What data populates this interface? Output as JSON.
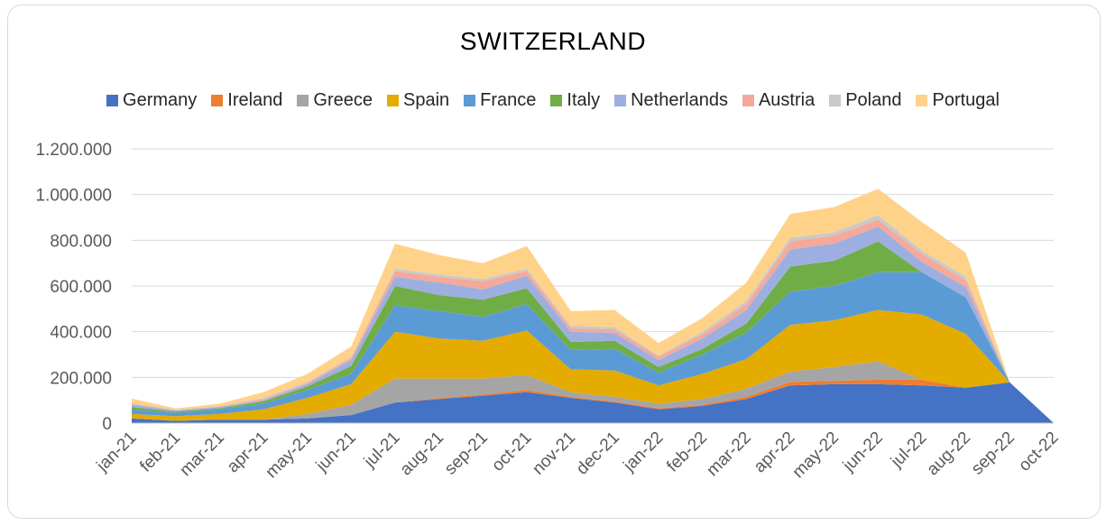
{
  "chart_data": {
    "type": "area",
    "stacked": true,
    "title": "SWITZERLAND",
    "xlabel": "",
    "ylabel": "",
    "ylim": [
      0,
      1200000
    ],
    "yticks": [
      {
        "value": 0,
        "label": "0"
      },
      {
        "value": 200000,
        "label": "200.000"
      },
      {
        "value": 400000,
        "label": "400.000"
      },
      {
        "value": 600000,
        "label": "600.000"
      },
      {
        "value": 800000,
        "label": "800.000"
      },
      {
        "value": 1000000,
        "label": "1.000.000"
      },
      {
        "value": 1200000,
        "label": "1.200.000"
      }
    ],
    "grid": true,
    "legend_position": "top",
    "categories": [
      "jan-21",
      "feb-21",
      "mar-21",
      "apr-21",
      "may-21",
      "jun-21",
      "jul-21",
      "aug-21",
      "sep-21",
      "oct-21",
      "nov-21",
      "dec-21",
      "jan-22",
      "feb-22",
      "mar-22",
      "apr-22",
      "may-22",
      "jun-22",
      "jul-22",
      "aug-22",
      "sep-22",
      "oct-22"
    ],
    "series": [
      {
        "name": "Germany",
        "color": "#4472c4",
        "values": [
          20000,
          10000,
          15000,
          15000,
          20000,
          35000,
          90000,
          105000,
          120000,
          135000,
          110000,
          90000,
          60000,
          75000,
          105000,
          165000,
          170000,
          170000,
          165000,
          155000,
          178000,
          0
        ]
      },
      {
        "name": "Ireland",
        "color": "#ed7d31",
        "values": [
          0,
          0,
          0,
          0,
          0,
          0,
          0,
          5000,
          5000,
          10000,
          5000,
          5000,
          5000,
          5000,
          10000,
          15000,
          15000,
          20000,
          25000,
          0,
          0,
          0
        ]
      },
      {
        "name": "Greece",
        "color": "#a5a5a5",
        "values": [
          0,
          0,
          0,
          0,
          20000,
          45000,
          105000,
          85000,
          70000,
          65000,
          20000,
          20000,
          20000,
          25000,
          35000,
          45000,
          60000,
          80000,
          0,
          0,
          0,
          0
        ]
      },
      {
        "name": "Spain",
        "color": "#e4ab00",
        "values": [
          20000,
          20000,
          25000,
          45000,
          70000,
          90000,
          205000,
          175000,
          165000,
          195000,
          100000,
          115000,
          80000,
          110000,
          130000,
          205000,
          205000,
          225000,
          285000,
          235000,
          0,
          0
        ]
      },
      {
        "name": "France",
        "color": "#5b9bd5",
        "values": [
          20000,
          15000,
          20000,
          25000,
          35000,
          45000,
          115000,
          120000,
          105000,
          115000,
          85000,
          95000,
          55000,
          85000,
          115000,
          145000,
          150000,
          165000,
          185000,
          160000,
          0,
          0
        ]
      },
      {
        "name": "Italy",
        "color": "#70ad47",
        "values": [
          10000,
          5000,
          5000,
          10000,
          15000,
          35000,
          85000,
          70000,
          75000,
          70000,
          35000,
          35000,
          25000,
          25000,
          40000,
          110000,
          110000,
          135000,
          0,
          0,
          0,
          0
        ]
      },
      {
        "name": "Netherlands",
        "color": "#9dafe0",
        "values": [
          10000,
          5000,
          5000,
          5000,
          10000,
          25000,
          40000,
          55000,
          45000,
          55000,
          45000,
          35000,
          30000,
          45000,
          60000,
          75000,
          75000,
          65000,
          45000,
          45000,
          0,
          0
        ]
      },
      {
        "name": "Austria",
        "color": "#f4a99a",
        "values": [
          5000,
          2000,
          3000,
          5000,
          5000,
          10000,
          25000,
          25000,
          35000,
          20000,
          15000,
          15000,
          15000,
          20000,
          25000,
          35000,
          35000,
          30000,
          35000,
          30000,
          0,
          0
        ]
      },
      {
        "name": "Poland",
        "color": "#c9c9c9",
        "values": [
          2000,
          2000,
          2000,
          5000,
          5000,
          5000,
          10000,
          10000,
          10000,
          10000,
          10000,
          10000,
          5000,
          10000,
          15000,
          15000,
          15000,
          20000,
          15000,
          15000,
          0,
          0
        ]
      },
      {
        "name": "Portugal",
        "color": "#ffd28a",
        "values": [
          20000,
          5000,
          10000,
          25000,
          35000,
          45000,
          110000,
          85000,
          70000,
          100000,
          65000,
          75000,
          55000,
          60000,
          80000,
          105000,
          110000,
          115000,
          125000,
          105000,
          0,
          0
        ]
      }
    ]
  }
}
